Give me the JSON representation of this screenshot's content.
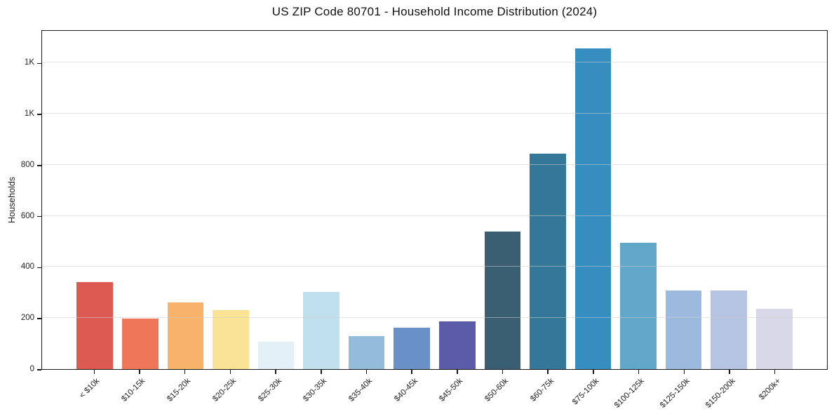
{
  "chart_data": {
    "type": "bar",
    "title": "US ZIP Code 80701 - Household Income Distribution (2024)",
    "xlabel": "",
    "ylabel": "Households",
    "categories": [
      "< $10k",
      "$10-15k",
      "$15-20k",
      "$20-25k",
      "$25-30k",
      "$30-35k",
      "$35-40k",
      "$40-45k",
      "$45-50k",
      "$50-60k",
      "$60-75k",
      "$75-100k",
      "$100-125k",
      "$125-150k",
      "$150-200k",
      "$200k+"
    ],
    "values": [
      340,
      198,
      260,
      232,
      107,
      302,
      130,
      163,
      188,
      538,
      845,
      1257,
      495,
      308,
      308,
      237
    ],
    "bar_colors": [
      "#dc5a52",
      "#ef7659",
      "#f9b269",
      "#fbe396",
      "#e4f0f7",
      "#bfe0ec",
      "#92bcda",
      "#6a91c7",
      "#5c5baa",
      "#3a5f73",
      "#347799",
      "#368dbf",
      "#60a7ca",
      "#9cbade",
      "#b5c4e2",
      "#d8d8e8"
    ],
    "ylim": [
      0,
      1330
    ],
    "y_ticks": [
      {
        "value": 0,
        "label": "0"
      },
      {
        "value": 200,
        "label": "200"
      },
      {
        "value": 400,
        "label": "400"
      },
      {
        "value": 600,
        "label": "600"
      },
      {
        "value": 800,
        "label": "800"
      },
      {
        "value": 1000,
        "label": "1K"
      },
      {
        "value": 1200,
        "label": "1K"
      }
    ],
    "grid": true,
    "legend_position": "none",
    "grid_color": "#cdcdcd",
    "axis_color": "#1a1a1a",
    "text_color": "#222222"
  }
}
